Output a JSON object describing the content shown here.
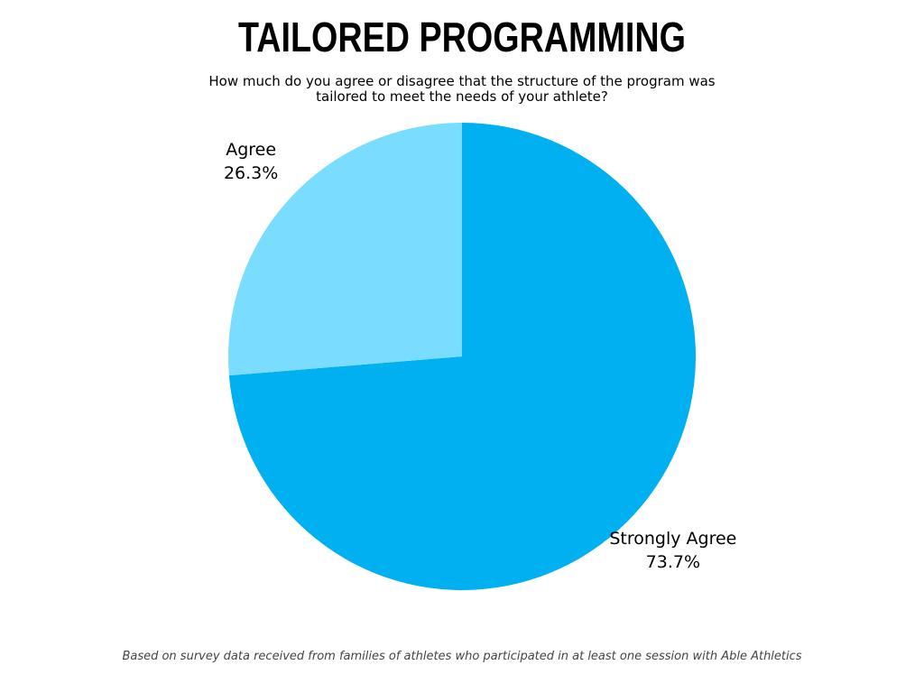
{
  "chart_data": {
    "type": "pie",
    "title": "TAILORED PROGRAMMING",
    "subtitle": "How much do you agree or disagree that the structure of the program was tailored to meet the needs of your athlete?",
    "categories": [
      "Strongly Agree",
      "Agree"
    ],
    "values": [
      73.7,
      26.3
    ],
    "value_labels": [
      "73.7%",
      "26.3%"
    ],
    "colors": [
      "#00b0f0",
      "#7adcfe"
    ],
    "note": "Based on survey data received from families of athletes who participated in at least one session with Able Athletics"
  }
}
